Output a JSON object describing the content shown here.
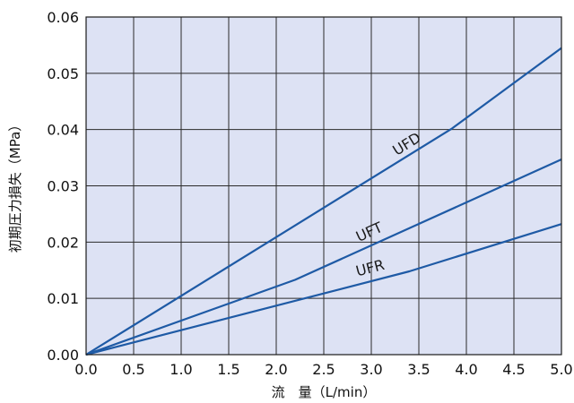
{
  "chart_data": {
    "type": "line",
    "xlabel": "流　量（L/min）",
    "ylabel": "初期圧力損失（MPa）",
    "xlim": [
      0,
      5
    ],
    "ylim": [
      0,
      0.06
    ],
    "x_ticks": [
      "0.0",
      "0.5",
      "1.0",
      "1.5",
      "2.0",
      "2.5",
      "3.0",
      "3.5",
      "4.0",
      "4.5",
      "5.0"
    ],
    "y_ticks": [
      "0.00",
      "0.01",
      "0.02",
      "0.03",
      "0.04",
      "0.05",
      "0.06"
    ],
    "grid": true,
    "legend": "none",
    "plot_background": "#dde2f4",
    "line_color": "#1e5aa5",
    "series": [
      {
        "name": "UFD",
        "x": [
          0,
          3.85,
          5.0
        ],
        "y": [
          0,
          0.0402,
          0.0545
        ]
      },
      {
        "name": "UFT",
        "x": [
          0,
          2.2,
          5.0
        ],
        "y": [
          0,
          0.0133,
          0.0347
        ]
      },
      {
        "name": "UFR",
        "x": [
          0,
          3.4,
          5.0
        ],
        "y": [
          0,
          0.0148,
          0.0232
        ]
      }
    ]
  }
}
